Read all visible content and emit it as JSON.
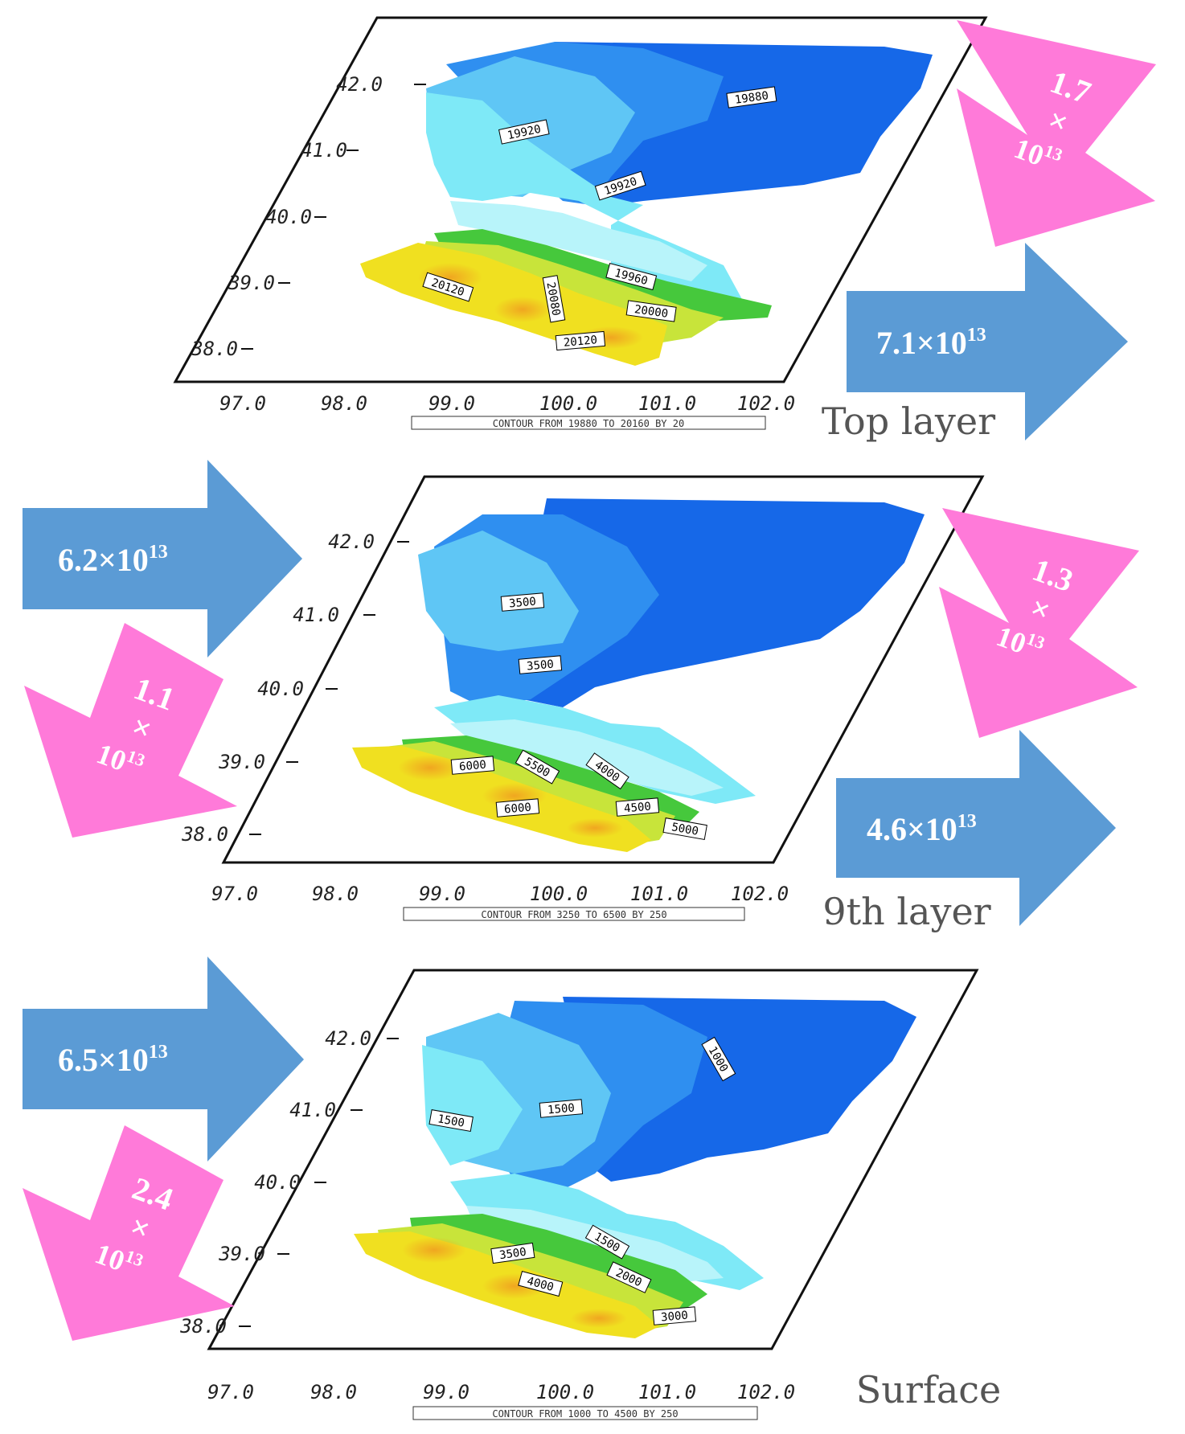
{
  "colors": {
    "deep_blue": "#1668e8",
    "mid_blue": "#2f8ff0",
    "light_blue": "#5fc6f5",
    "cyan": "#7ee9f7",
    "pale_cyan": "#b8f4fa",
    "green": "#46c83c",
    "yellow_green": "#c8e43a",
    "yellow": "#f0e020",
    "orange": "#f5b820",
    "blue_arrow": "#5b9bd5",
    "pink_arrow": "#ff7ad9"
  },
  "lon_ticks": [
    "97.0",
    "98.0",
    "99.0",
    "100.0",
    "101.0",
    "102.0"
  ],
  "lat_ticks": [
    "38.0",
    "39.0",
    "40.0",
    "41.0",
    "42.0"
  ],
  "panels": [
    {
      "title": "Top layer",
      "caption": "CONTOUR FROM 19880 TO 20160 BY 20",
      "contour_labels": [
        "19880",
        "19920",
        "19920",
        "19960",
        "20120",
        "20080",
        "20000",
        "20120"
      ]
    },
    {
      "title": "9th layer",
      "caption": "CONTOUR FROM 3250 TO 6500 BY 250",
      "contour_labels": [
        "3500",
        "3500",
        "6000",
        "5500",
        "4000",
        "4500",
        "5000",
        "6000"
      ]
    },
    {
      "title": "Surface",
      "caption": "CONTOUR FROM 1000 TO 4500 BY 250",
      "contour_labels": [
        "1000",
        "1500",
        "1500",
        "1500",
        "3500",
        "2000",
        "4000",
        "3000"
      ]
    }
  ],
  "arrows": {
    "top_out_east": {
      "mantissa": "7.1",
      "times": "×",
      "base": "10",
      "exp": "13"
    },
    "top_in_north": {
      "mantissa": "1.7",
      "times": "×",
      "base": "10",
      "exp": "13"
    },
    "mid_in_west": {
      "mantissa": "6.2",
      "times": "×",
      "base": "10",
      "exp": "13"
    },
    "mid_out_southwest": {
      "mantissa": "1.1",
      "times": "×",
      "base": "10",
      "exp": "13"
    },
    "mid_in_north": {
      "mantissa": "1.3",
      "times": "×",
      "base": "10",
      "exp": "13"
    },
    "mid_out_east": {
      "mantissa": "4.6",
      "times": "×",
      "base": "10",
      "exp": "13"
    },
    "surf_in_west": {
      "mantissa": "6.5",
      "times": "×",
      "base": "10",
      "exp": "13"
    },
    "surf_out_southwest": {
      "mantissa": "2.4",
      "times": "×",
      "base": "10",
      "exp": "13"
    }
  }
}
